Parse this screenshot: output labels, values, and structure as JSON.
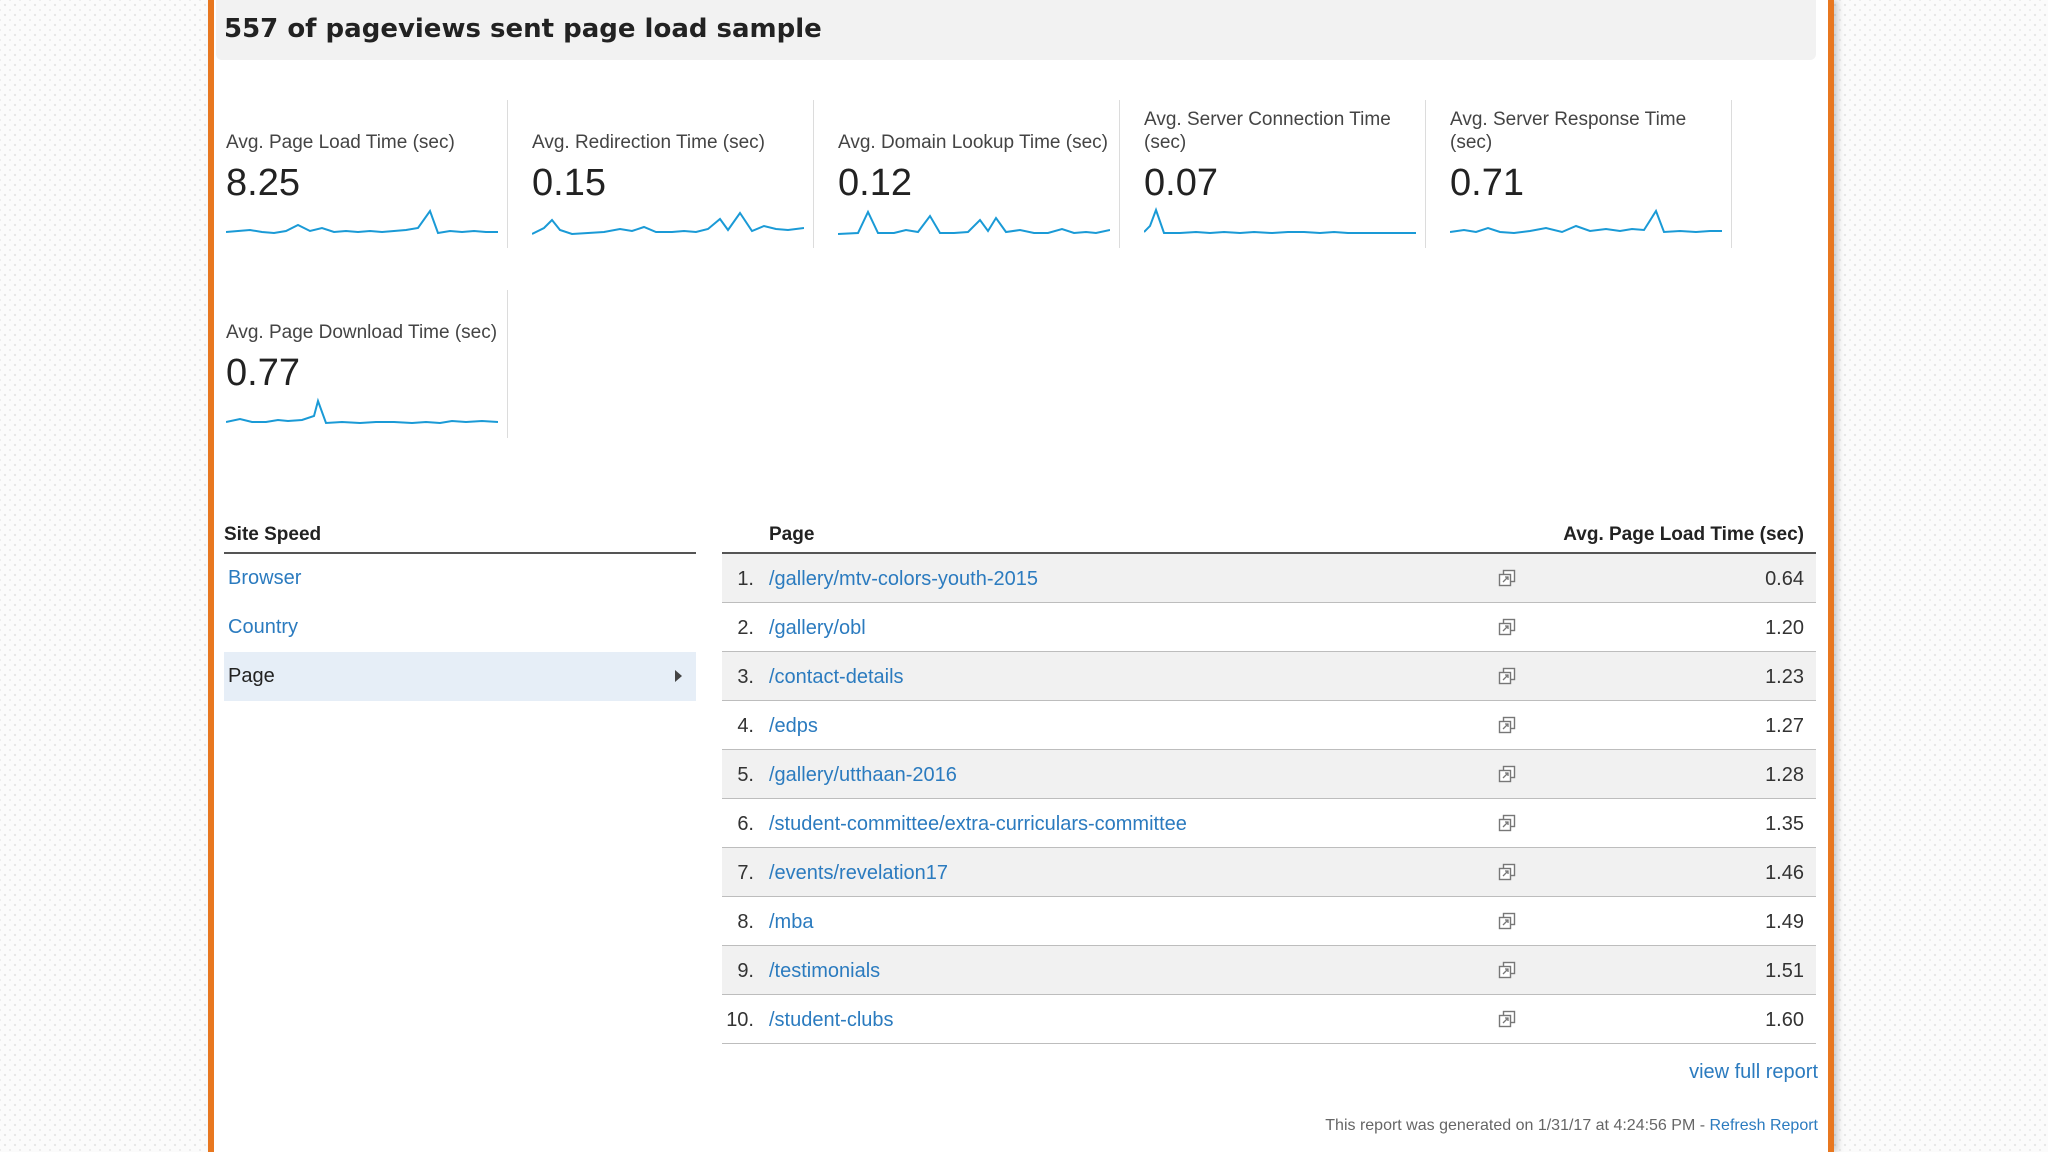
{
  "report": {
    "title": "557 of pageviews sent page load sample"
  },
  "metrics": [
    {
      "label": "Avg. Page Load Time (sec)",
      "value": "8.25"
    },
    {
      "label": "Avg. Redirection Time (sec)",
      "value": "0.15"
    },
    {
      "label": "Avg. Domain Lookup Time (sec)",
      "value": "0.12"
    },
    {
      "label": "Avg. Server Connection Time (sec)",
      "value": "0.07"
    },
    {
      "label": "Avg. Server Response Time (sec)",
      "value": "0.71"
    },
    {
      "label": "Avg. Page Download Time (sec)",
      "value": "0.77"
    }
  ],
  "sidebar": {
    "header": "Site Speed",
    "items": [
      {
        "label": "Browser",
        "active": false
      },
      {
        "label": "Country",
        "active": false
      },
      {
        "label": "Page",
        "active": true
      }
    ]
  },
  "table": {
    "columns": {
      "page": "Page",
      "metric": "Avg. Page Load Time (sec)"
    },
    "rows": [
      {
        "index": "1.",
        "page": "/gallery/mtv-colors-youth-2015",
        "value": "0.64"
      },
      {
        "index": "2.",
        "page": "/gallery/obl",
        "value": "1.20"
      },
      {
        "index": "3.",
        "page": "/contact-details",
        "value": "1.23"
      },
      {
        "index": "4.",
        "page": "/edps",
        "value": "1.27"
      },
      {
        "index": "5.",
        "page": "/gallery/utthaan-2016",
        "value": "1.28"
      },
      {
        "index": "6.",
        "page": "/student-committee/extra-curriculars-committee",
        "value": "1.35"
      },
      {
        "index": "7.",
        "page": "/events/revelation17",
        "value": "1.46"
      },
      {
        "index": "8.",
        "page": "/mba",
        "value": "1.49"
      },
      {
        "index": "9.",
        "page": "/testimonials",
        "value": "1.51"
      },
      {
        "index": "10.",
        "page": "/student-clubs",
        "value": "1.60"
      }
    ],
    "row_icon": "open-in-new-window-icon",
    "view_full_label": "view full report"
  },
  "footer": {
    "text": "This report was generated on 1/31/17 at 4:24:56 PM - ",
    "refresh_label": "Refresh Report"
  },
  "colors": {
    "accent_border": "#e8771f",
    "link": "#2b7bbf",
    "sparkline": "#1a9ad6"
  }
}
